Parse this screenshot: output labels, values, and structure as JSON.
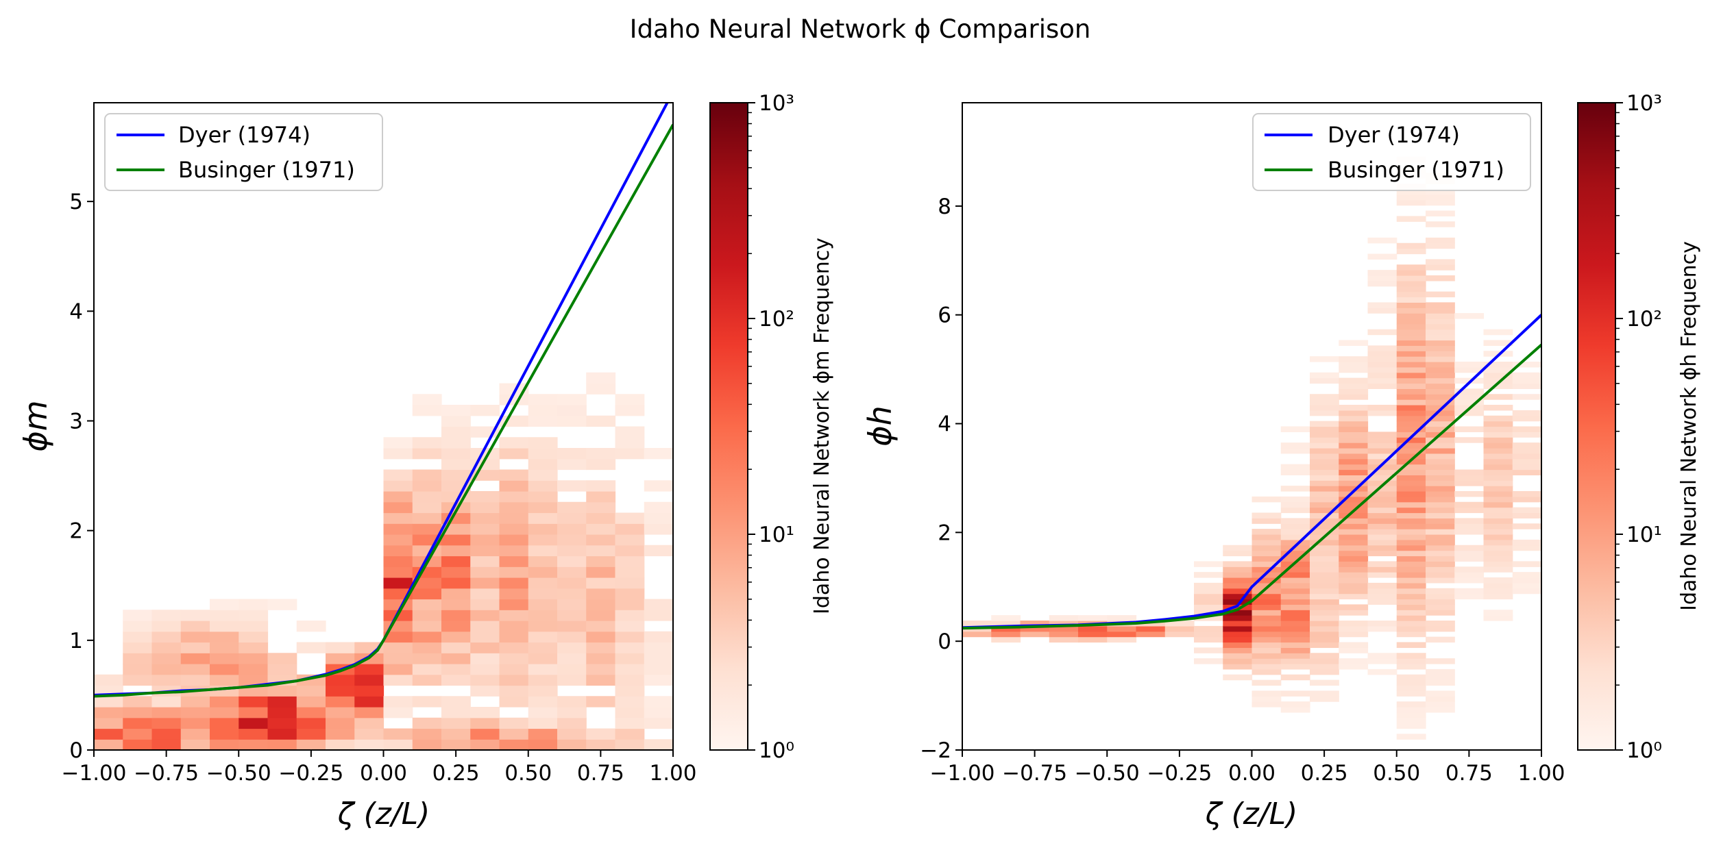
{
  "figure": {
    "title": "Idaho Neural Network ϕ Comparison"
  },
  "chart_data": [
    {
      "type": "heatmap",
      "id": "phi_m",
      "xlabel": "ζ (z/L)",
      "ylabel": "ϕm",
      "xlim": [
        -1.0,
        1.0
      ],
      "ylim": [
        0,
        5.9
      ],
      "xticks": [
        -1.0,
        -0.75,
        -0.5,
        -0.25,
        0.0,
        0.25,
        0.5,
        0.75,
        1.0
      ],
      "xtick_labels": [
        "−1.00",
        "−0.75",
        "−0.50",
        "−0.25",
        "0.00",
        "0.25",
        "0.50",
        "0.75",
        "1.00"
      ],
      "yticks": [
        0,
        1,
        2,
        3,
        4,
        5
      ],
      "ytick_labels": [
        "0",
        "1",
        "2",
        "3",
        "4",
        "5"
      ],
      "colorbar": {
        "label": "Idaho Neural Network ϕm Frequency",
        "scale": "log",
        "range": [
          1,
          1000
        ],
        "tick_labels": [
          "10⁰",
          "10¹",
          "10²",
          "10³"
        ],
        "cmap": [
          "#fff5f0",
          "#fee0d2",
          "#fcbba1",
          "#fc9272",
          "#fb6a4a",
          "#ef3b2c",
          "#cb181d",
          "#a50f15",
          "#67000d"
        ]
      },
      "legend": {
        "placement": "upper-left",
        "entries": [
          {
            "label": "Dyer (1974)",
            "color": "#0000ff"
          },
          {
            "label": "Businger (1971)",
            "color": "#008000"
          }
        ]
      },
      "series": [
        {
          "name": "Dyer (1974)",
          "color": "#0000ff",
          "x": [
            -1.0,
            -0.9,
            -0.8,
            -0.7,
            -0.6,
            -0.5,
            -0.4,
            -0.3,
            -0.2,
            -0.15,
            -0.1,
            -0.05,
            -0.02,
            0.0,
            1.0
          ],
          "y": [
            0.5,
            0.51,
            0.52,
            0.54,
            0.55,
            0.57,
            0.6,
            0.63,
            0.69,
            0.73,
            0.78,
            0.85,
            0.92,
            1.0,
            6.0
          ]
        },
        {
          "name": "Businger (1971)",
          "color": "#008000",
          "x": [
            -1.0,
            -0.9,
            -0.8,
            -0.7,
            -0.6,
            -0.5,
            -0.4,
            -0.3,
            -0.2,
            -0.15,
            -0.1,
            -0.05,
            -0.02,
            0.0,
            1.0
          ],
          "y": [
            0.49,
            0.5,
            0.52,
            0.53,
            0.55,
            0.57,
            0.59,
            0.63,
            0.68,
            0.72,
            0.77,
            0.84,
            0.91,
            1.0,
            5.7
          ]
        }
      ],
      "density_centers": [
        {
          "x": -0.85,
          "y": 0.1,
          "w": 0.2,
          "h": 0.35,
          "a": 2.0
        },
        {
          "x": -0.4,
          "y": 0.3,
          "w": 0.3,
          "h": 0.35,
          "a": 2.2
        },
        {
          "x": -0.08,
          "y": 0.6,
          "w": 0.1,
          "h": 0.3,
          "a": 2.7
        },
        {
          "x": 0.05,
          "y": 1.5,
          "w": 0.06,
          "h": 0.8,
          "a": 2.0
        },
        {
          "x": 0.2,
          "y": 1.6,
          "w": 0.15,
          "h": 1.0,
          "a": 1.5
        },
        {
          "x": 0.45,
          "y": 1.6,
          "w": 0.2,
          "h": 1.2,
          "a": 1.1
        },
        {
          "x": 0.75,
          "y": 1.4,
          "w": 0.2,
          "h": 1.5,
          "a": 0.8
        },
        {
          "x": -0.6,
          "y": 0.8,
          "w": 0.35,
          "h": 0.4,
          "a": 1.0
        },
        {
          "x": 0.4,
          "y": 0.1,
          "w": 0.5,
          "h": 0.2,
          "a": 1.2
        }
      ]
    },
    {
      "type": "heatmap",
      "id": "phi_h",
      "xlabel": "ζ (z/L)",
      "ylabel": "ϕh",
      "xlim": [
        -1.0,
        1.0
      ],
      "ylim": [
        -2,
        9.9
      ],
      "xticks": [
        -1.0,
        -0.75,
        -0.5,
        -0.25,
        0.0,
        0.25,
        0.5,
        0.75,
        1.0
      ],
      "xtick_labels": [
        "−1.00",
        "−0.75",
        "−0.50",
        "−0.25",
        "0.00",
        "0.25",
        "0.50",
        "0.75",
        "1.00"
      ],
      "yticks": [
        -2,
        0,
        2,
        4,
        6,
        8
      ],
      "ytick_labels": [
        "−2",
        "0",
        "2",
        "4",
        "6",
        "8"
      ],
      "colorbar": {
        "label": "Idaho Neural Network ϕh Frequency",
        "scale": "log",
        "range": [
          1,
          1000
        ],
        "tick_labels": [
          "10⁰",
          "10¹",
          "10²",
          "10³"
        ],
        "cmap": [
          "#fff5f0",
          "#fee0d2",
          "#fcbba1",
          "#fc9272",
          "#fb6a4a",
          "#ef3b2c",
          "#cb181d",
          "#a50f15",
          "#67000d"
        ]
      },
      "legend": {
        "placement": "upper-right",
        "entries": [
          {
            "label": "Dyer (1974)",
            "color": "#0000ff"
          },
          {
            "label": "Businger (1971)",
            "color": "#008000"
          }
        ]
      },
      "series": [
        {
          "name": "Dyer (1974)",
          "color": "#0000ff",
          "x": [
            -1.0,
            -0.8,
            -0.6,
            -0.4,
            -0.3,
            -0.2,
            -0.1,
            -0.05,
            0.0,
            1.0
          ],
          "y": [
            0.25,
            0.28,
            0.3,
            0.35,
            0.4,
            0.46,
            0.55,
            0.65,
            1.0,
            6.0
          ]
        },
        {
          "name": "Businger (1971)",
          "color": "#008000",
          "x": [
            -1.0,
            -0.8,
            -0.6,
            -0.4,
            -0.3,
            -0.2,
            -0.1,
            -0.05,
            0.0,
            1.0
          ],
          "y": [
            0.24,
            0.26,
            0.29,
            0.33,
            0.37,
            0.42,
            0.5,
            0.58,
            0.74,
            5.45
          ]
        }
      ],
      "density_centers": [
        {
          "x": -0.6,
          "y": 0.2,
          "w": 0.4,
          "h": 0.15,
          "a": 2.0
        },
        {
          "x": -0.05,
          "y": 0.5,
          "w": 0.08,
          "h": 0.8,
          "a": 2.5
        },
        {
          "x": 0.1,
          "y": 0.8,
          "w": 0.08,
          "h": 1.3,
          "a": 2.1
        },
        {
          "x": 0.2,
          "y": 0.3,
          "w": 0.05,
          "h": 1.2,
          "a": 1.8
        },
        {
          "x": 0.35,
          "y": 2.5,
          "w": 0.15,
          "h": 2.0,
          "a": 1.2
        },
        {
          "x": 0.58,
          "y": 3.5,
          "w": 0.12,
          "h": 3.5,
          "a": 1.3
        },
        {
          "x": 0.85,
          "y": 3.0,
          "w": 0.15,
          "h": 2.0,
          "a": 0.7
        }
      ]
    }
  ]
}
